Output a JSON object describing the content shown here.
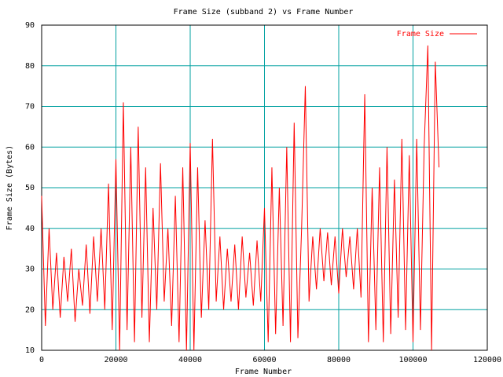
{
  "chart_data": {
    "type": "line",
    "title": "Frame Size (subband 2) vs Frame Number",
    "x_label": "Frame Number",
    "y_label": "Frame Size (Bytes)",
    "xlim": [
      0,
      120000
    ],
    "xticks": [
      0,
      20000,
      40000,
      60000,
      80000,
      100000,
      120000
    ],
    "ylim": [
      10,
      90
    ],
    "yticks": [
      10,
      20,
      30,
      40,
      50,
      60,
      70,
      80,
      90
    ],
    "grid": true,
    "legend": "top-right",
    "x": [
      0,
      1000,
      2000,
      3000,
      4000,
      5000,
      6000,
      7000,
      8000,
      9000,
      10000,
      11000,
      12000,
      13000,
      14000,
      15000,
      16000,
      17000,
      18000,
      19000,
      20000,
      21000,
      22000,
      23000,
      24000,
      25000,
      26000,
      27000,
      28000,
      29000,
      30000,
      31000,
      32000,
      33000,
      34000,
      35000,
      36000,
      37000,
      38000,
      39000,
      40000,
      41000,
      42000,
      43000,
      44000,
      45000,
      46000,
      47000,
      48000,
      49000,
      50000,
      51000,
      52000,
      53000,
      54000,
      55000,
      56000,
      57000,
      58000,
      59000,
      60000,
      61000,
      62000,
      63000,
      64000,
      65000,
      66000,
      67000,
      68000,
      69000,
      70000,
      71000,
      72000,
      73000,
      74000,
      75000,
      76000,
      77000,
      78000,
      79000,
      80000,
      81000,
      82000,
      83000,
      84000,
      85000,
      86000,
      87000,
      88000,
      89000,
      90000,
      91000,
      92000,
      93000,
      94000,
      95000,
      96000,
      97000,
      98000,
      99000,
      100000,
      101000,
      102000,
      103000,
      104000,
      105000,
      106000,
      107000
    ],
    "series": [
      {
        "name": "Frame Size",
        "color": "#ff0000",
        "values": [
          48,
          16,
          40,
          20,
          34,
          18,
          33,
          22,
          35,
          17,
          30,
          21,
          36,
          19,
          38,
          22,
          40,
          20,
          51,
          15,
          57,
          10,
          71,
          15,
          60,
          12,
          65,
          18,
          55,
          12,
          45,
          20,
          56,
          22,
          40,
          16,
          48,
          12,
          55,
          10,
          61,
          10,
          55,
          18,
          42,
          20,
          62,
          22,
          38,
          20,
          35,
          22,
          36,
          20,
          38,
          23,
          34,
          21,
          37,
          22,
          45,
          12,
          55,
          14,
          50,
          16,
          60,
          12,
          66,
          13,
          40,
          75,
          22,
          38,
          25,
          40,
          27,
          39,
          26,
          38,
          24,
          40,
          28,
          38,
          25,
          40,
          23,
          73,
          12,
          50,
          15,
          55,
          12,
          60,
          14,
          52,
          18,
          62,
          15,
          58,
          12,
          62,
          15,
          60,
          85,
          10,
          81,
          55
        ]
      }
    ]
  }
}
